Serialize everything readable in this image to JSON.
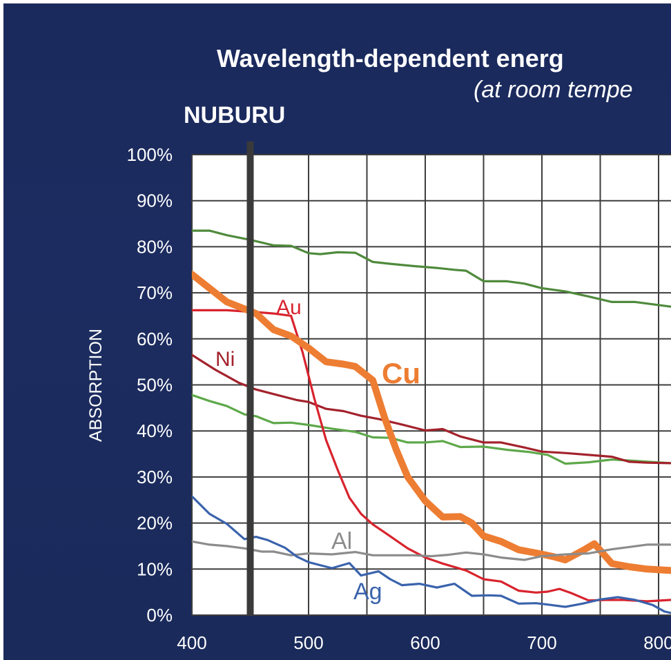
{
  "chart_data": {
    "type": "line",
    "title": "Wavelength-dependent energ",
    "subtitle": "(at room tempe",
    "marker_label": "NUBURU",
    "marker_x": 450,
    "ylabel": "ABSORPTION",
    "xlabel": "",
    "xlim": [
      400,
      810
    ],
    "ylim": [
      0,
      100
    ],
    "x_ticks": [
      "400",
      "500",
      "600",
      "700",
      "800"
    ],
    "y_ticks": [
      "0%",
      "10%",
      "20%",
      "30%",
      "40%",
      "50%",
      "60%",
      "70%",
      "80%",
      "90%",
      "100%"
    ],
    "grid": true,
    "series": [
      {
        "name": "",
        "color": "#4f8a3c",
        "points": [
          [
            400,
            83.5
          ],
          [
            415,
            83.5
          ],
          [
            430,
            82.5
          ],
          [
            450,
            81.5
          ],
          [
            470,
            80.3
          ],
          [
            485,
            80.2
          ],
          [
            500,
            78.6
          ],
          [
            510,
            78.4
          ],
          [
            525,
            78.8
          ],
          [
            540,
            78.7
          ],
          [
            555,
            76.7
          ],
          [
            570,
            76.3
          ],
          [
            590,
            75.8
          ],
          [
            610,
            75.4
          ],
          [
            625,
            75
          ],
          [
            635,
            74.8
          ],
          [
            650,
            72.5
          ],
          [
            670,
            72.5
          ],
          [
            685,
            72
          ],
          [
            700,
            71
          ],
          [
            720,
            70.3
          ],
          [
            740,
            69.2
          ],
          [
            760,
            68
          ],
          [
            780,
            68
          ],
          [
            810,
            67
          ]
        ]
      },
      {
        "name": "",
        "color": "#5ea84a",
        "points": [
          [
            400,
            47.8
          ],
          [
            415,
            46.5
          ],
          [
            430,
            45.4
          ],
          [
            445,
            43.6
          ],
          [
            455,
            43.2
          ],
          [
            470,
            41.7
          ],
          [
            485,
            41.8
          ],
          [
            500,
            41.3
          ],
          [
            520,
            40.5
          ],
          [
            540,
            39.8
          ],
          [
            555,
            38.6
          ],
          [
            570,
            38.5
          ],
          [
            585,
            37.5
          ],
          [
            600,
            37.5
          ],
          [
            615,
            37.8
          ],
          [
            630,
            36.5
          ],
          [
            650,
            36.6
          ],
          [
            670,
            35.9
          ],
          [
            690,
            35.4
          ],
          [
            705,
            34.8
          ],
          [
            720,
            32.9
          ],
          [
            740,
            33.2
          ],
          [
            760,
            33.8
          ],
          [
            780,
            33.5
          ],
          [
            810,
            33
          ]
        ]
      },
      {
        "name": "Ni",
        "label_text": "Ni",
        "color": "#a3222c",
        "points": [
          [
            400,
            56.5
          ],
          [
            420,
            53.3
          ],
          [
            440,
            50.5
          ],
          [
            455,
            49
          ],
          [
            470,
            48
          ],
          [
            490,
            46.7
          ],
          [
            500,
            46.3
          ],
          [
            515,
            44.8
          ],
          [
            530,
            44.3
          ],
          [
            545,
            43.3
          ],
          [
            560,
            42.6
          ],
          [
            580,
            41.4
          ],
          [
            600,
            40.1
          ],
          [
            615,
            40.4
          ],
          [
            630,
            38.8
          ],
          [
            650,
            37.5
          ],
          [
            665,
            37.5
          ],
          [
            685,
            36.4
          ],
          [
            700,
            35.5
          ],
          [
            720,
            35.2
          ],
          [
            740,
            34.8
          ],
          [
            760,
            34.4
          ],
          [
            775,
            33.3
          ],
          [
            790,
            33.1
          ],
          [
            810,
            33
          ]
        ]
      },
      {
        "name": "Au",
        "label_text": "Au",
        "color": "#d8232d",
        "points": [
          [
            400,
            66.2
          ],
          [
            430,
            66.2
          ],
          [
            455,
            65.8
          ],
          [
            470,
            65.5
          ],
          [
            485,
            65
          ],
          [
            495,
            57
          ],
          [
            505,
            47
          ],
          [
            515,
            38
          ],
          [
            525,
            31.5
          ],
          [
            535,
            25.5
          ],
          [
            545,
            22
          ],
          [
            555,
            19.7
          ],
          [
            565,
            18
          ],
          [
            585,
            14.5
          ],
          [
            600,
            12.5
          ],
          [
            615,
            11.2
          ],
          [
            635,
            9.7
          ],
          [
            650,
            7.8
          ],
          [
            665,
            7.3
          ],
          [
            680,
            5.3
          ],
          [
            695,
            4.9
          ],
          [
            705,
            5.1
          ],
          [
            715,
            5.7
          ],
          [
            725,
            4.8
          ],
          [
            740,
            3.2
          ],
          [
            755,
            3.3
          ],
          [
            770,
            3.3
          ],
          [
            790,
            3
          ],
          [
            810,
            3.3
          ]
        ]
      },
      {
        "name": "Cu",
        "label_text": "Cu",
        "color": "#ed7d32",
        "points": [
          [
            400,
            74
          ],
          [
            415,
            71
          ],
          [
            430,
            68
          ],
          [
            445,
            66.5
          ],
          [
            455,
            65.5
          ],
          [
            470,
            62
          ],
          [
            485,
            60.6
          ],
          [
            500,
            58
          ],
          [
            515,
            55
          ],
          [
            530,
            54.5
          ],
          [
            540,
            54
          ],
          [
            555,
            51
          ],
          [
            565,
            43
          ],
          [
            575,
            36
          ],
          [
            585,
            30
          ],
          [
            600,
            24.8
          ],
          [
            615,
            21.3
          ],
          [
            630,
            21.4
          ],
          [
            640,
            20
          ],
          [
            650,
            17.2
          ],
          [
            665,
            16
          ],
          [
            680,
            14.2
          ],
          [
            695,
            13.5
          ],
          [
            710,
            12.7
          ],
          [
            720,
            12
          ],
          [
            735,
            14
          ],
          [
            745,
            15.5
          ],
          [
            760,
            11.2
          ],
          [
            775,
            10.5
          ],
          [
            790,
            10
          ],
          [
            810,
            9.7
          ]
        ]
      },
      {
        "name": "Al",
        "label_text": "Al",
        "color": "#8c8c8c",
        "points": [
          [
            400,
            16
          ],
          [
            415,
            15.3
          ],
          [
            430,
            15
          ],
          [
            445,
            14.5
          ],
          [
            460,
            13.8
          ],
          [
            470,
            13.8
          ],
          [
            485,
            13
          ],
          [
            500,
            13.4
          ],
          [
            520,
            13.2
          ],
          [
            540,
            13.7
          ],
          [
            555,
            13
          ],
          [
            570,
            13
          ],
          [
            590,
            13
          ],
          [
            605,
            12.8
          ],
          [
            620,
            13.1
          ],
          [
            635,
            13.6
          ],
          [
            650,
            13.2
          ],
          [
            665,
            12.5
          ],
          [
            685,
            12
          ],
          [
            700,
            12.8
          ],
          [
            720,
            13.2
          ],
          [
            740,
            13.4
          ],
          [
            760,
            14.3
          ],
          [
            775,
            14.8
          ],
          [
            790,
            15.3
          ],
          [
            810,
            15.3
          ]
        ]
      },
      {
        "name": "Ag",
        "label_text": "Ag",
        "color": "#3a63ac",
        "points": [
          [
            400,
            25.8
          ],
          [
            415,
            22
          ],
          [
            430,
            19.8
          ],
          [
            445,
            16.5
          ],
          [
            455,
            17
          ],
          [
            465,
            16.3
          ],
          [
            480,
            14.6
          ],
          [
            490,
            12.7
          ],
          [
            500,
            11.5
          ],
          [
            520,
            10.2
          ],
          [
            535,
            11.3
          ],
          [
            545,
            8.6
          ],
          [
            560,
            9.5
          ],
          [
            570,
            7.8
          ],
          [
            580,
            6.5
          ],
          [
            595,
            6.8
          ],
          [
            610,
            6
          ],
          [
            625,
            6.8
          ],
          [
            640,
            4.2
          ],
          [
            655,
            4.3
          ],
          [
            665,
            4.2
          ],
          [
            680,
            2.5
          ],
          [
            695,
            2.6
          ],
          [
            705,
            2.3
          ],
          [
            720,
            1.8
          ],
          [
            735,
            2.5
          ],
          [
            750,
            3.4
          ],
          [
            765,
            3.9
          ],
          [
            780,
            3.3
          ],
          [
            795,
            2.2
          ],
          [
            805,
            0.8
          ],
          [
            810,
            0.5
          ]
        ]
      }
    ]
  }
}
